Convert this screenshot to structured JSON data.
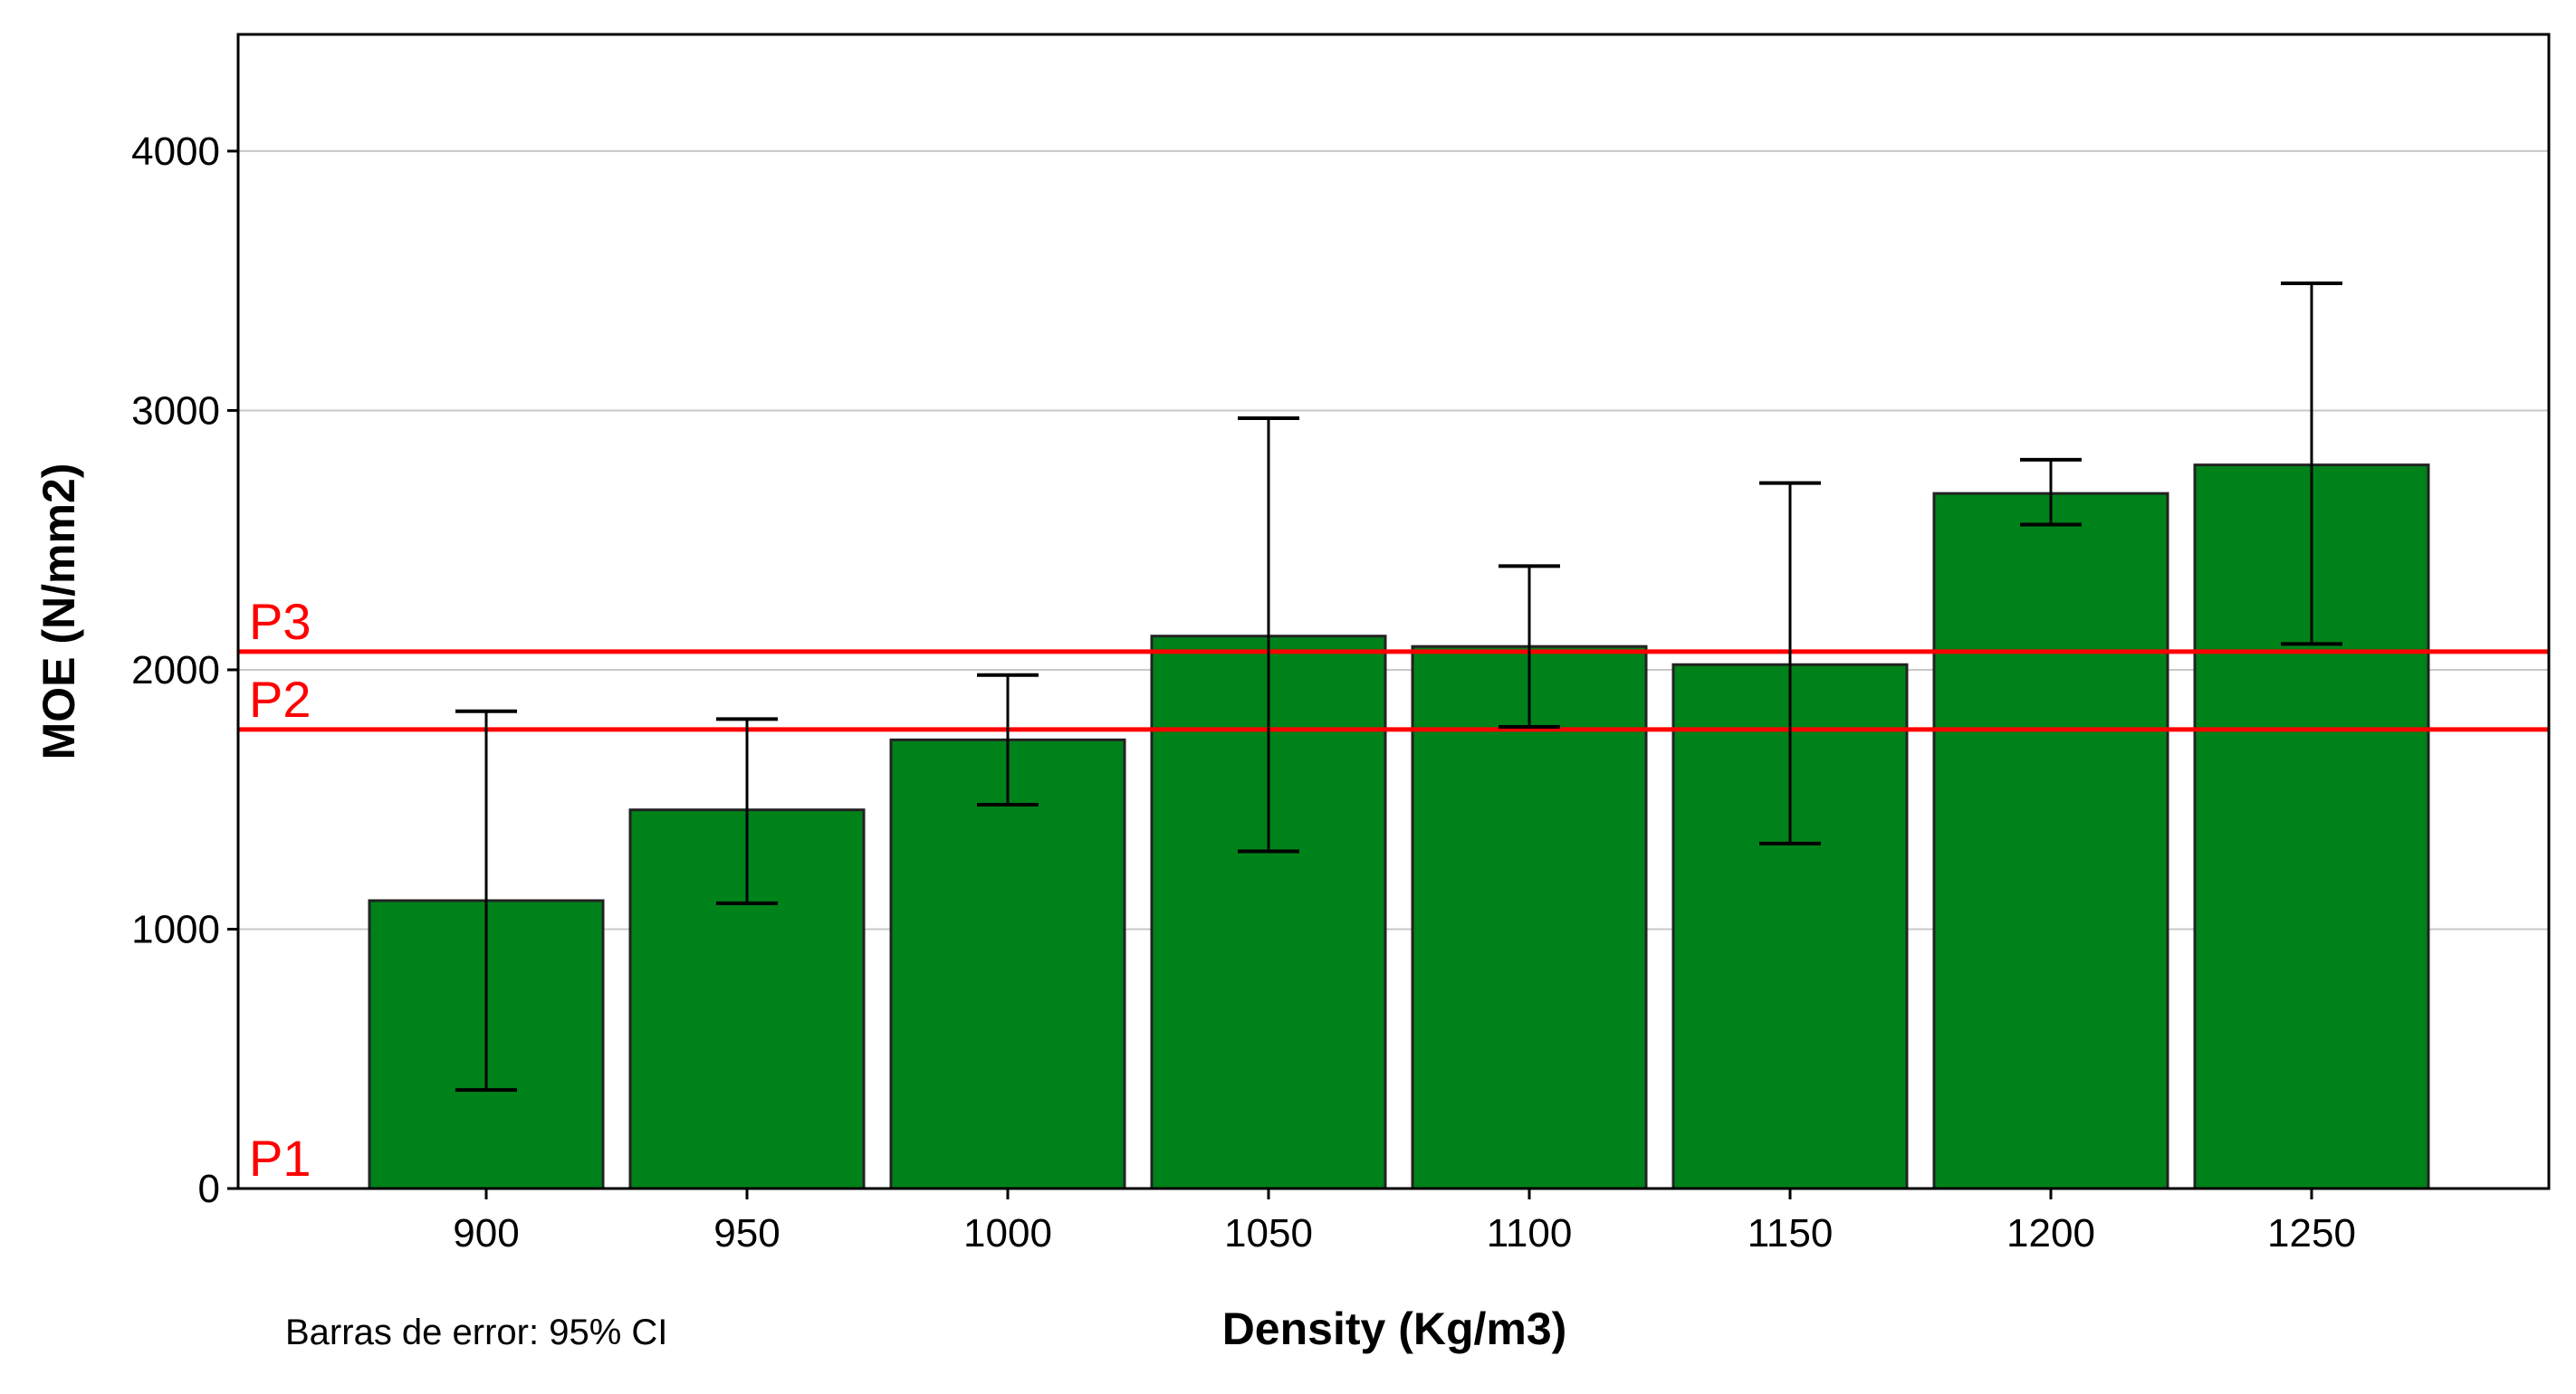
{
  "chart_data": {
    "type": "bar",
    "xlabel": "Density (Kg/m3)",
    "ylabel": "MOE (N/mm2)",
    "categories": [
      "900",
      "950",
      "1000",
      "1050",
      "1100",
      "1150",
      "1200",
      "1250"
    ],
    "values": [
      1110,
      1460,
      1730,
      2130,
      2090,
      2020,
      2680,
      2790
    ],
    "error_low": [
      380,
      1100,
      1480,
      1300,
      1780,
      1330,
      2560,
      2100
    ],
    "error_high": [
      1840,
      1810,
      1980,
      2970,
      2400,
      2720,
      2810,
      3490
    ],
    "ylim": [
      0,
      4450
    ],
    "yticks": [
      0,
      1000,
      2000,
      3000,
      4000
    ],
    "grid": true,
    "bar_color": "#00821a",
    "reference_lines": [
      {
        "label": "P1",
        "value": 0
      },
      {
        "label": "P2",
        "value": 1770
      },
      {
        "label": "P3",
        "value": 2070
      }
    ],
    "reference_color": "#ff0000",
    "note": "Barras de error: 95% CI"
  }
}
